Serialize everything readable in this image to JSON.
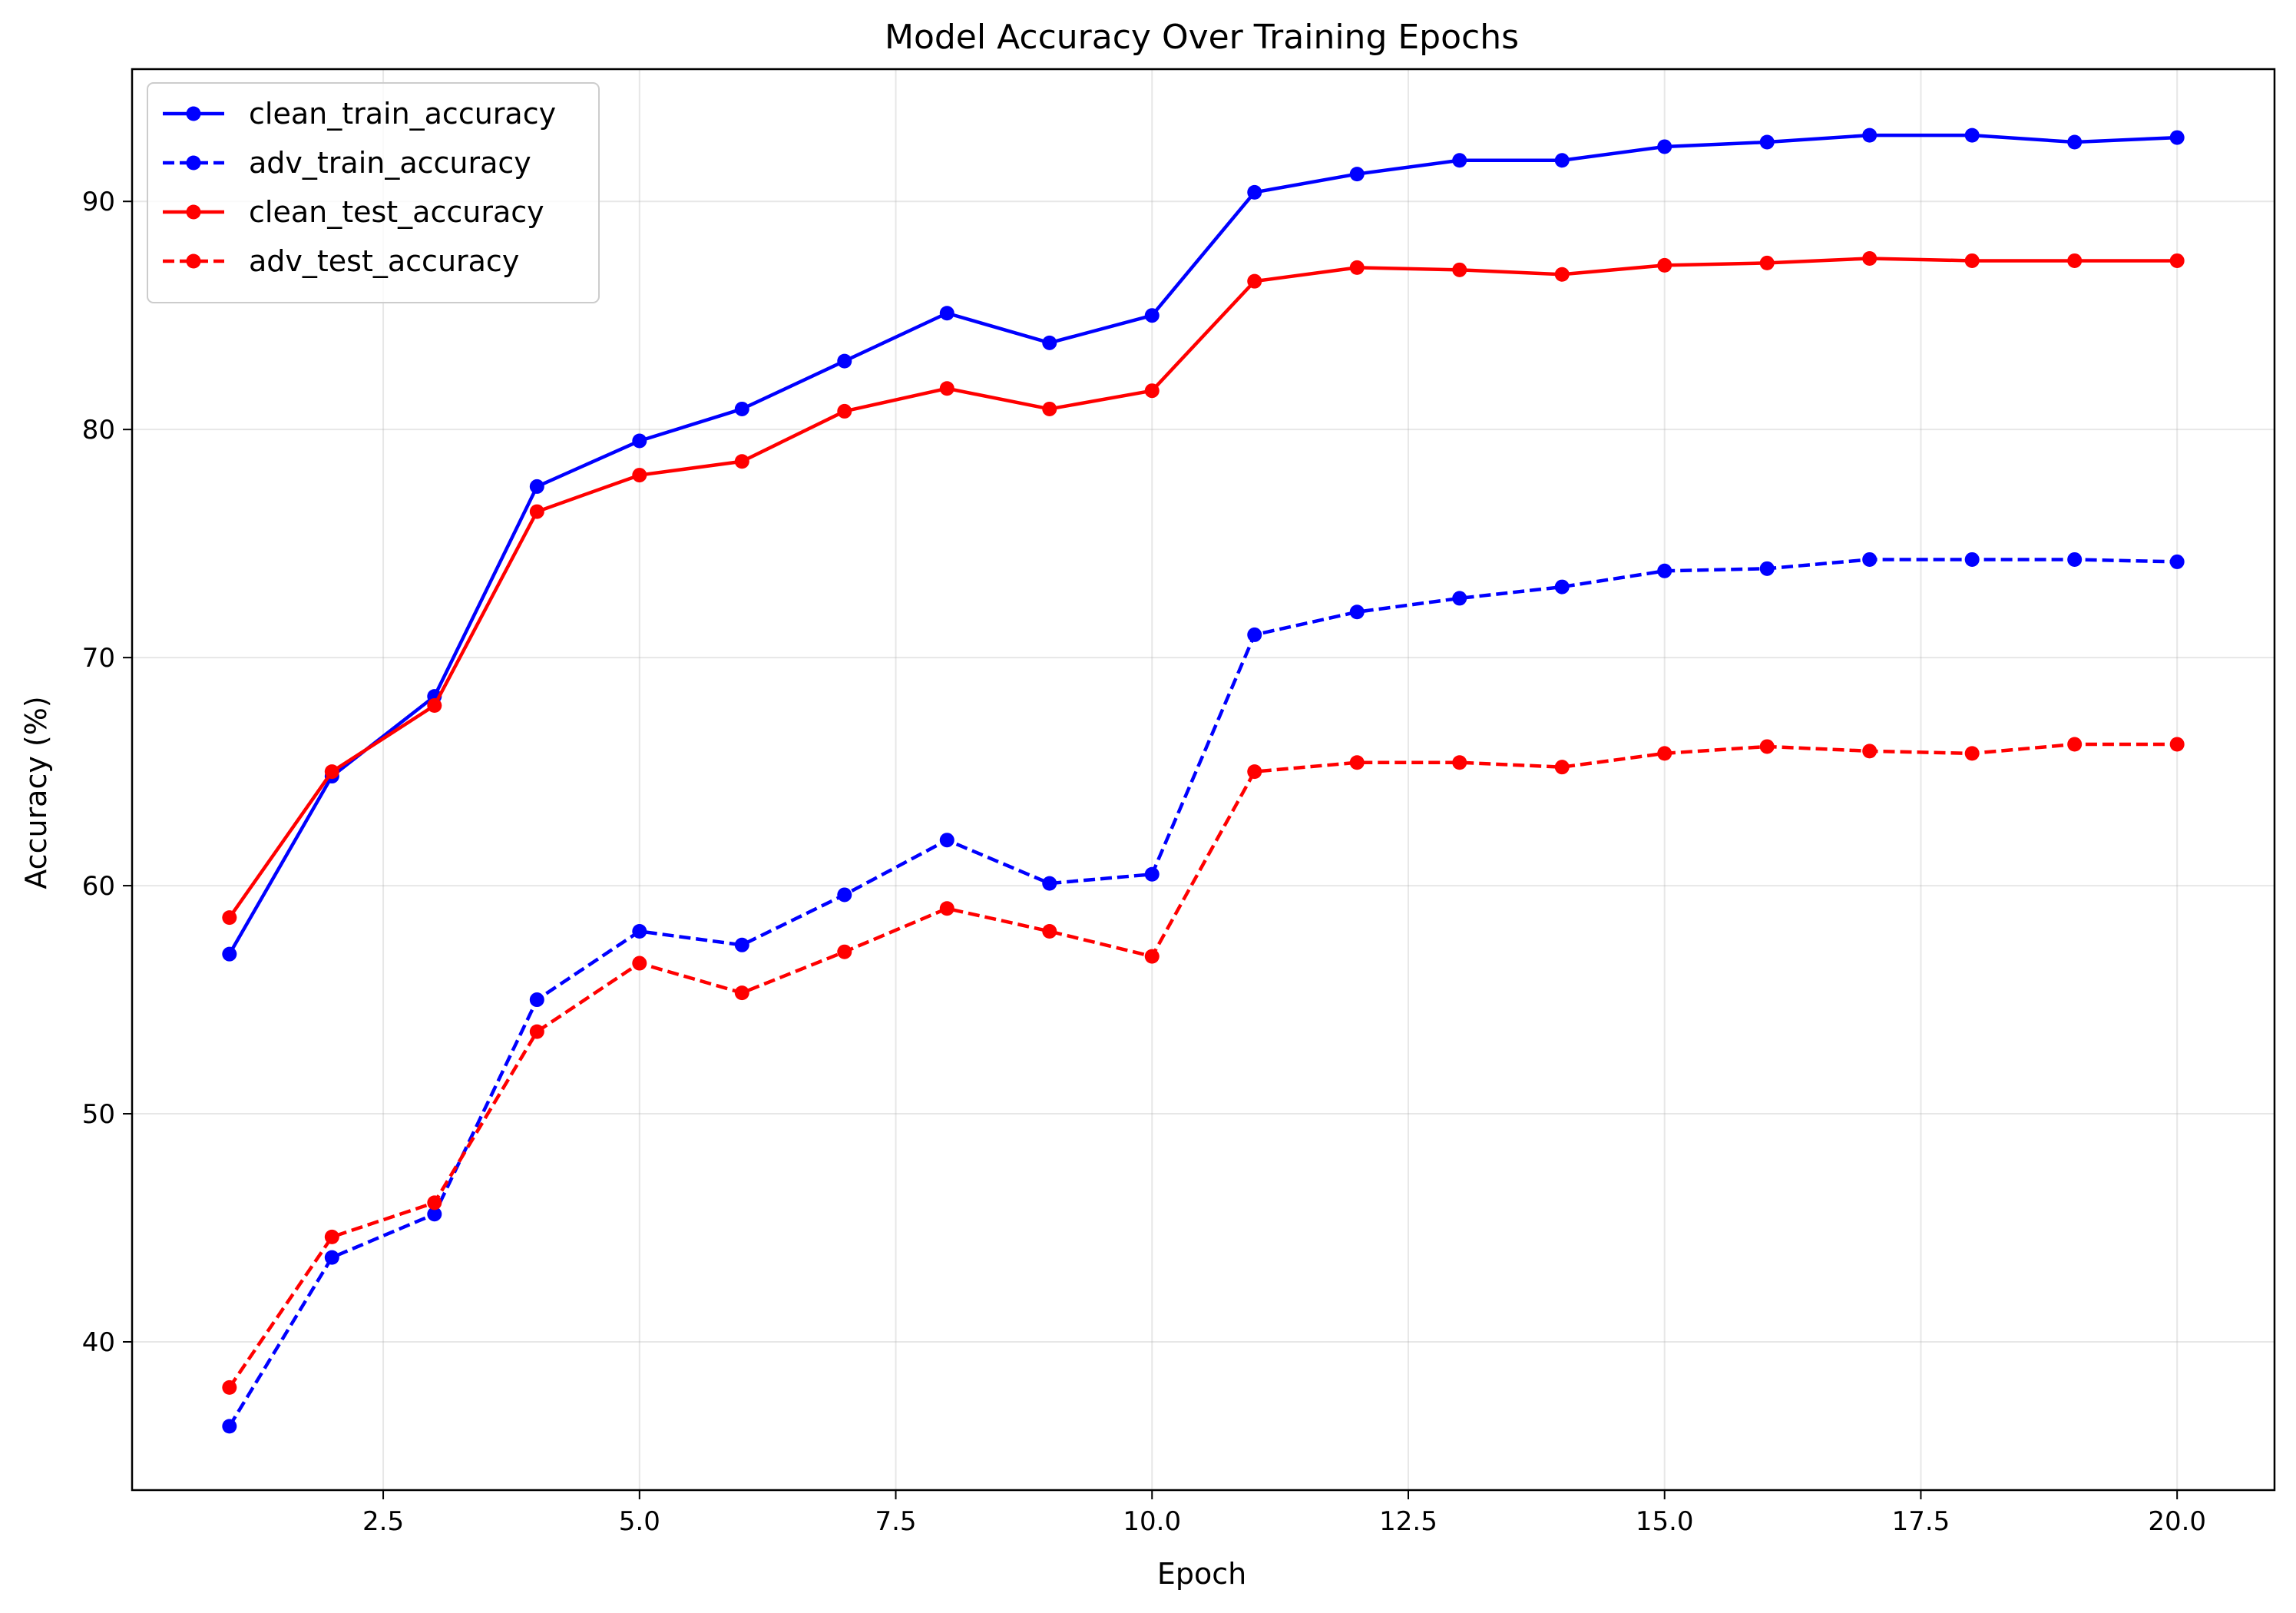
{
  "chart_data": {
    "type": "line",
    "title": "Model Accuracy Over Training Epochs",
    "xlabel": "Epoch",
    "ylabel": "Accuracy (%)",
    "xlim": [
      0.05,
      20.95
    ],
    "ylim": [
      33.5,
      95.8
    ],
    "xticks": [
      2.5,
      5.0,
      7.5,
      10.0,
      12.5,
      15.0,
      17.5,
      20.0
    ],
    "xtick_labels": [
      "2.5",
      "5.0",
      "7.5",
      "10.0",
      "12.5",
      "15.0",
      "17.5",
      "20.0"
    ],
    "yticks": [
      40,
      50,
      60,
      70,
      80,
      90
    ],
    "ytick_labels": [
      "40",
      "50",
      "60",
      "70",
      "80",
      "90"
    ],
    "grid": true,
    "legend_position": "top-left",
    "x": [
      1,
      2,
      3,
      4,
      5,
      6,
      7,
      8,
      9,
      10,
      11,
      12,
      13,
      14,
      15,
      16,
      17,
      18,
      19,
      20
    ],
    "series": [
      {
        "name": "clean_train_accuracy",
        "color": "#0000ff",
        "linestyle": "solid",
        "values": [
          57.0,
          64.8,
          68.3,
          77.5,
          79.5,
          80.9,
          83.0,
          85.1,
          83.8,
          85.0,
          90.4,
          91.2,
          91.8,
          91.8,
          92.4,
          92.6,
          92.9,
          92.9,
          92.6,
          92.8
        ]
      },
      {
        "name": "adv_train_accuracy",
        "color": "#0000ff",
        "linestyle": "dashed",
        "values": [
          36.3,
          43.7,
          45.6,
          55.0,
          58.0,
          57.4,
          59.6,
          62.0,
          60.1,
          60.5,
          71.0,
          72.0,
          72.6,
          73.1,
          73.8,
          73.9,
          74.3,
          74.3,
          74.3,
          74.2
        ]
      },
      {
        "name": "clean_test_accuracy",
        "color": "#ff0000",
        "linestyle": "solid",
        "values": [
          58.6,
          65.0,
          67.9,
          76.4,
          78.0,
          78.6,
          80.8,
          81.8,
          80.9,
          81.7,
          86.5,
          87.1,
          87.0,
          86.8,
          87.2,
          87.3,
          87.5,
          87.4,
          87.4,
          87.4
        ]
      },
      {
        "name": "adv_test_accuracy",
        "color": "#ff0000",
        "linestyle": "dashed",
        "values": [
          38.0,
          44.6,
          46.1,
          53.6,
          56.6,
          55.3,
          57.1,
          59.0,
          58.0,
          56.9,
          65.0,
          65.4,
          65.4,
          65.2,
          65.8,
          66.1,
          65.9,
          65.8,
          66.2,
          66.2
        ]
      }
    ]
  }
}
